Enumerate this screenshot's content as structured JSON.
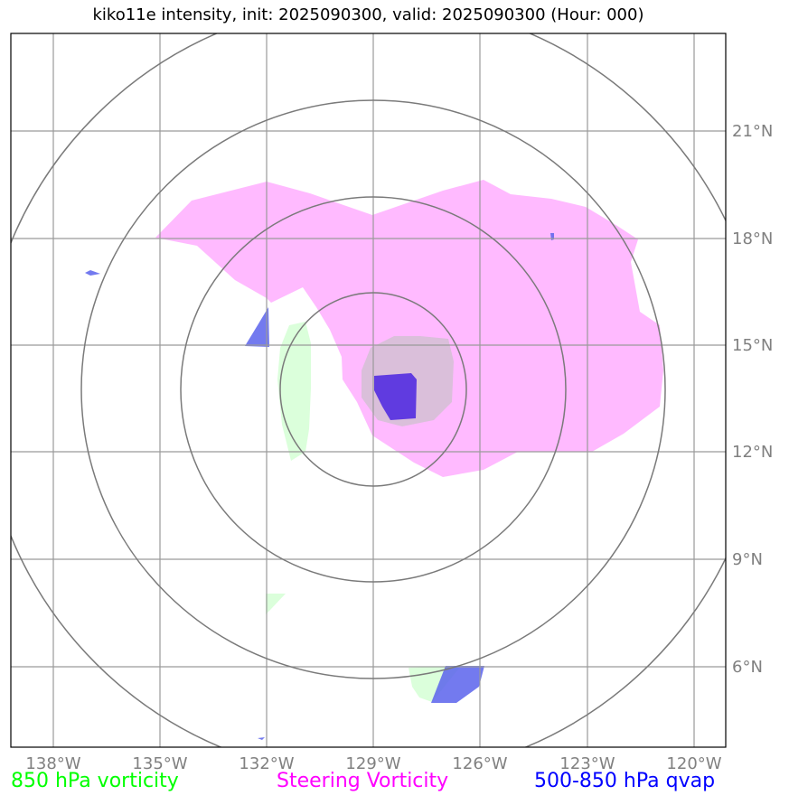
{
  "title": "kiko11e intensity, init: 2025090300, valid: 2025090300 (Hour: 000)",
  "map": {
    "longitude_labels": [
      "138°W",
      "135°W",
      "132°W",
      "129°W",
      "126°W",
      "123°W",
      "120°W"
    ],
    "latitude_labels": [
      "21°N",
      "18°N",
      "15°N",
      "12°N",
      "9°N",
      "6°N"
    ],
    "storm_center": {
      "lon": "129°W",
      "lat": "13.6°N"
    },
    "range_rings": 4
  },
  "legend": [
    {
      "label": "850 hPa vorticity",
      "color": "#00ff00"
    },
    {
      "label": "Steering Vorticity",
      "color": "#ff00ff"
    },
    {
      "label": "500-850 hPa qvap",
      "color": "#0000ff"
    }
  ],
  "colors": {
    "steering_fill": "#ffb3ff",
    "vorticity850_fill": "#d9ffd9",
    "qvap_fill": "#5a63ec",
    "gridline": "#9a9a9a",
    "ring": "#7a7a7a"
  }
}
